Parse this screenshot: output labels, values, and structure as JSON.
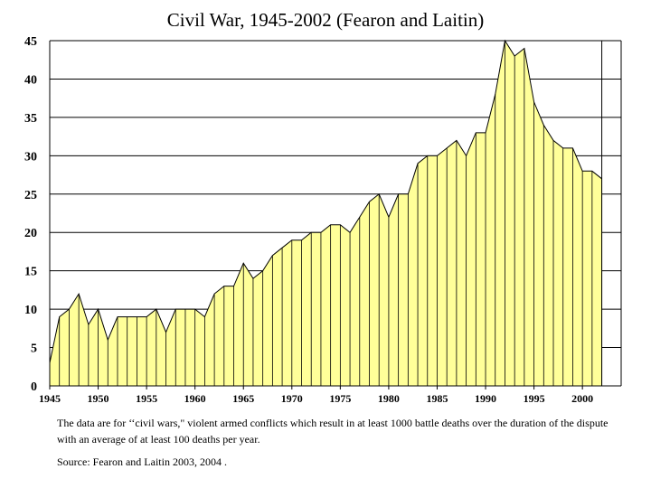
{
  "chart_data": {
    "type": "area",
    "title": "Civil War, 1945-2002 (Fearon and Laitin)",
    "xlabel": "",
    "ylabel": "",
    "xlim": [
      1945,
      2004
    ],
    "ylim": [
      0,
      45
    ],
    "y_ticks": [
      "0",
      "5",
      "10",
      "15",
      "20",
      "25",
      "30",
      "35",
      "40",
      "45"
    ],
    "x_ticks": [
      "1945",
      "1950",
      "1955",
      "1960",
      "1965",
      "1970",
      "1975",
      "1980",
      "1985",
      "1990",
      "1995",
      "2000"
    ],
    "grid": true,
    "fill_color": "#ffff99",
    "line_color": "#000000",
    "x": [
      1945,
      1946,
      1947,
      1948,
      1949,
      1950,
      1951,
      1952,
      1953,
      1954,
      1955,
      1956,
      1957,
      1958,
      1959,
      1960,
      1961,
      1962,
      1963,
      1964,
      1965,
      1966,
      1967,
      1968,
      1969,
      1970,
      1971,
      1972,
      1973,
      1974,
      1975,
      1976,
      1977,
      1978,
      1979,
      1980,
      1981,
      1982,
      1983,
      1984,
      1985,
      1986,
      1987,
      1988,
      1989,
      1990,
      1991,
      1992,
      1993,
      1994,
      1995,
      1996,
      1997,
      1998,
      1999,
      2000,
      2001,
      2002
    ],
    "values": [
      3,
      9,
      10,
      12,
      8,
      10,
      6,
      9,
      9,
      9,
      9,
      10,
      7,
      10,
      10,
      10,
      9,
      12,
      13,
      13,
      16,
      14,
      15,
      17,
      18,
      19,
      19,
      20,
      20,
      21,
      21,
      20,
      22,
      24,
      25,
      22,
      25,
      25,
      29,
      30,
      30,
      31,
      32,
      30,
      33,
      33,
      38,
      45,
      43,
      44,
      37,
      34,
      32,
      31,
      31,
      28,
      28,
      27
    ]
  },
  "footnote": {
    "note": "The data are for ‘‘civil wars,\" violent armed conflicts which result in at least 1000 battle deaths over the duration of the dispute with an average of at least 100 deaths per year.",
    "source": "Source: Fearon and Laitin 2003, 2004 ."
  }
}
